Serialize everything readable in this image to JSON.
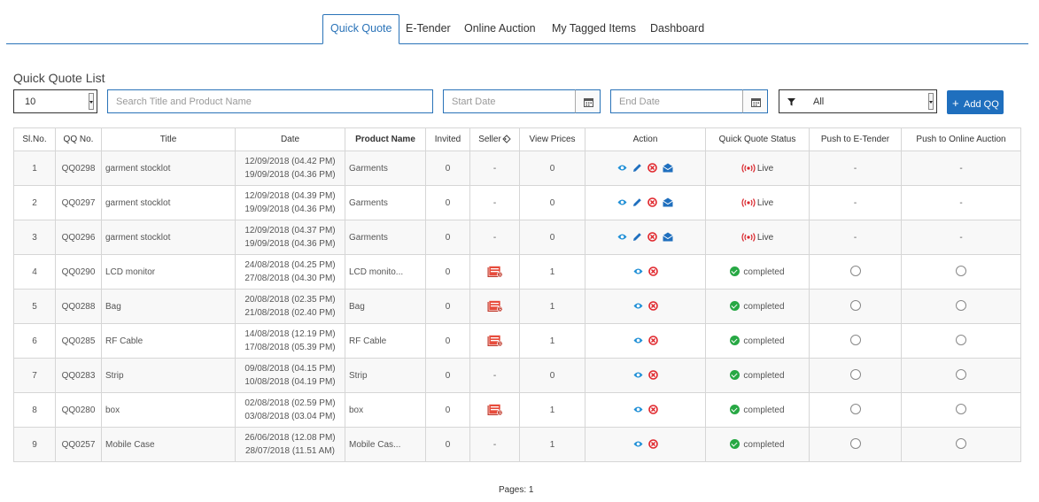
{
  "tabs": [
    "Quick Quote",
    "E-Tender",
    "Online Auction",
    "My Tagged Items",
    "Dashboard"
  ],
  "list_title": "Quick Quote List",
  "filters": {
    "page_size": "10",
    "search_placeholder": "Search Title and Product Name",
    "start_date_placeholder": "Start Date",
    "end_date_placeholder": "End Date",
    "status_filter": "All",
    "add_button": "Add QQ"
  },
  "columns": [
    "Sl.No.",
    "QQ No.",
    "Title",
    "Date",
    "Product Name",
    "Invited",
    "Seller",
    "View Prices",
    "Action",
    "Quick Quote Status",
    "Push to E-Tender",
    "Push to Online Auction"
  ],
  "rows": [
    {
      "sl": "1",
      "qq": "QQ0298",
      "title": "garment stocklot",
      "date1": "12/09/2018 (04.42 PM)",
      "date2": "19/09/2018 (04.36 PM)",
      "product": "Garments",
      "invited": "0",
      "seller": "-",
      "prices": "0",
      "status": "Live",
      "etender": "-",
      "auction": "-"
    },
    {
      "sl": "2",
      "qq": "QQ0297",
      "title": "garment stocklot",
      "date1": "12/09/2018 (04.39 PM)",
      "date2": "19/09/2018 (04.36 PM)",
      "product": "Garments",
      "invited": "0",
      "seller": "-",
      "prices": "0",
      "status": "Live",
      "etender": "-",
      "auction": "-"
    },
    {
      "sl": "3",
      "qq": "QQ0296",
      "title": "garment stocklot",
      "date1": "12/09/2018 (04.37 PM)",
      "date2": "19/09/2018 (04.36 PM)",
      "product": "Garments",
      "invited": "0",
      "seller": "-",
      "prices": "0",
      "status": "Live",
      "etender": "-",
      "auction": "-"
    },
    {
      "sl": "4",
      "qq": "QQ0290",
      "title": "LCD monitor",
      "date1": "24/08/2018 (04.25 PM)",
      "date2": "27/08/2018 (04.30 PM)",
      "product": "LCD monito...",
      "invited": "0",
      "seller": "icon",
      "prices": "1",
      "status": "completed"
    },
    {
      "sl": "5",
      "qq": "QQ0288",
      "title": "Bag",
      "date1": "20/08/2018 (02.35 PM)",
      "date2": "21/08/2018 (02.40 PM)",
      "product": "Bag",
      "invited": "0",
      "seller": "icon",
      "prices": "1",
      "status": "completed"
    },
    {
      "sl": "6",
      "qq": "QQ0285",
      "title": "RF Cable",
      "date1": "14/08/2018 (12.19 PM)",
      "date2": "17/08/2018 (05.39 PM)",
      "product": "RF Cable",
      "invited": "0",
      "seller": "icon",
      "prices": "1",
      "status": "completed"
    },
    {
      "sl": "7",
      "qq": "QQ0283",
      "title": "Strip",
      "date1": "09/08/2018 (04.15 PM)",
      "date2": "10/08/2018 (04.19 PM)",
      "product": "Strip",
      "invited": "0",
      "seller": "-",
      "prices": "0",
      "status": "completed"
    },
    {
      "sl": "8",
      "qq": "QQ0280",
      "title": "box",
      "date1": "02/08/2018 (02.59 PM)",
      "date2": "03/08/2018 (03.04 PM)",
      "product": "box",
      "invited": "0",
      "seller": "icon",
      "prices": "1",
      "status": "completed"
    },
    {
      "sl": "9",
      "qq": "QQ0257",
      "title": "Mobile Case",
      "date1": "26/06/2018 (12.08 PM)",
      "date2": "28/07/2018 (11.51 AM)",
      "product": "Mobile Cas...",
      "invited": "0",
      "seller": "-",
      "prices": "1",
      "status": "completed"
    }
  ],
  "pages_label": "Pages: 1",
  "colors": {
    "accent": "#1f6fbe",
    "live": "#d9262c",
    "completed": "#27a844"
  }
}
